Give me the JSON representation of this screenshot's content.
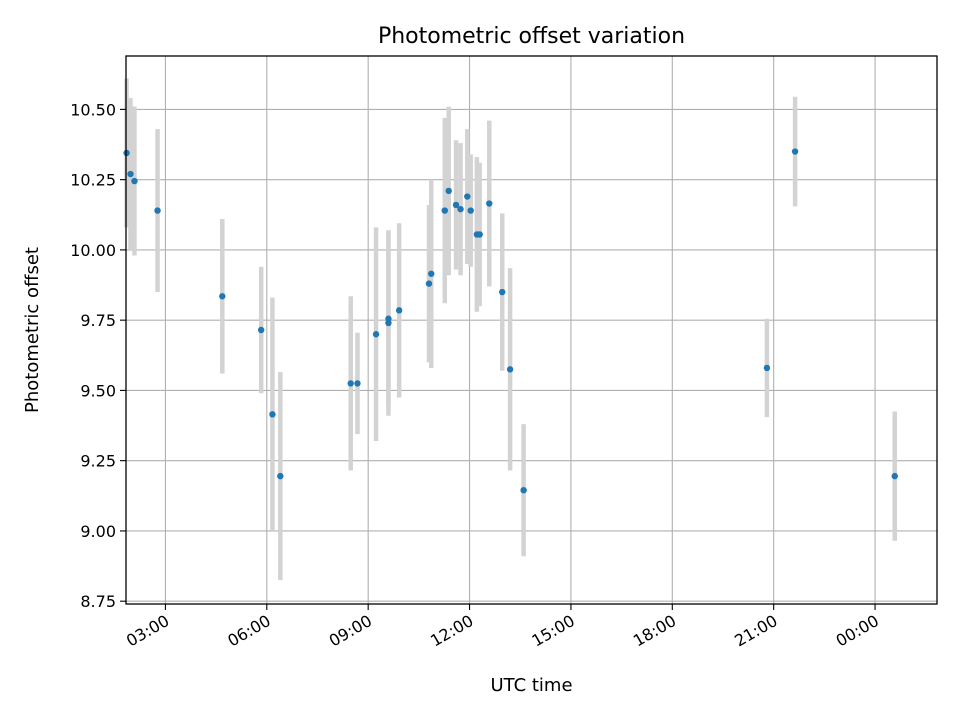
{
  "chart_data": {
    "type": "scatter",
    "title": "Photometric offset variation",
    "xlabel": "UTC time",
    "ylabel": "Photometric offset",
    "x_tick_labels": [
      "03:00",
      "06:00",
      "09:00",
      "12:00",
      "15:00",
      "18:00",
      "21:00",
      "00:00"
    ],
    "y_tick_labels": [
      "8.75",
      "9.00",
      "9.25",
      "9.50",
      "9.75",
      "10.00",
      "10.25",
      "10.50"
    ],
    "ylim": [
      8.74,
      10.69
    ],
    "xlim": [
      "01:50",
      "1 day 01:50"
    ],
    "grid": true,
    "point_color": "#1f77b4",
    "errorbar_color": "#d3d3d3",
    "points": [
      {
        "x": "01:51",
        "y": 10.345,
        "yerr": 0.265
      },
      {
        "x": "01:58",
        "y": 10.27,
        "yerr": 0.27
      },
      {
        "x": "02:05",
        "y": 10.245,
        "yerr": 0.265
      },
      {
        "x": "02:46",
        "y": 10.14,
        "yerr": 0.29
      },
      {
        "x": "04:41",
        "y": 9.835,
        "yerr": 0.275
      },
      {
        "x": "05:50",
        "y": 9.715,
        "yerr": 0.225
      },
      {
        "x": "06:10",
        "y": 9.415,
        "yerr": 0.415
      },
      {
        "x": "06:24",
        "y": 9.195,
        "yerr": 0.37
      },
      {
        "x": "08:29",
        "y": 9.525,
        "yerr": 0.31
      },
      {
        "x": "08:41",
        "y": 9.525,
        "yerr": 0.18
      },
      {
        "x": "09:14",
        "y": 9.7,
        "yerr": 0.38
      },
      {
        "x": "09:36",
        "y": 9.74,
        "yerr": 0.33
      },
      {
        "x": "09:36",
        "y": 9.755,
        "yerr": 0.31
      },
      {
        "x": "09:55",
        "y": 9.785,
        "yerr": 0.31
      },
      {
        "x": "10:48",
        "y": 9.88,
        "yerr": 0.28
      },
      {
        "x": "10:52",
        "y": 9.915,
        "yerr": 0.335
      },
      {
        "x": "11:16",
        "y": 10.14,
        "yerr": 0.33
      },
      {
        "x": "11:23",
        "y": 10.21,
        "yerr": 0.3
      },
      {
        "x": "11:36",
        "y": 10.16,
        "yerr": 0.23
      },
      {
        "x": "11:44",
        "y": 10.145,
        "yerr": 0.235
      },
      {
        "x": "11:56",
        "y": 10.19,
        "yerr": 0.24
      },
      {
        "x": "12:02",
        "y": 10.14,
        "yerr": 0.2
      },
      {
        "x": "12:13",
        "y": 10.055,
        "yerr": 0.275
      },
      {
        "x": "12:18",
        "y": 10.055,
        "yerr": 0.255
      },
      {
        "x": "12:35",
        "y": 10.165,
        "yerr": 0.295
      },
      {
        "x": "12:58",
        "y": 9.85,
        "yerr": 0.28
      },
      {
        "x": "13:12",
        "y": 9.575,
        "yerr": 0.36
      },
      {
        "x": "13:36",
        "y": 9.145,
        "yerr": 0.235
      },
      {
        "x": "20:48",
        "y": 9.58,
        "yerr": 0.175
      },
      {
        "x": "21:38",
        "y": 10.35,
        "yerr": 0.195
      },
      {
        "x": "1 day 00:35",
        "y": 9.195,
        "yerr": 0.23
      }
    ]
  }
}
